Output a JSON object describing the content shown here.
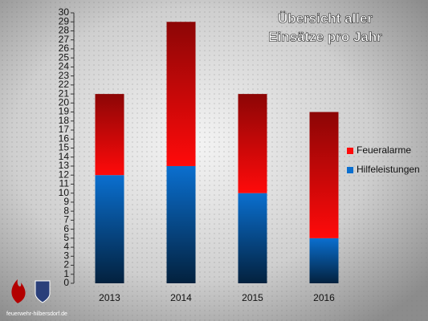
{
  "chart_data": {
    "type": "stacked_bar",
    "title": [
      "Übersicht aller",
      "Einsätze pro Jahr"
    ],
    "categories": [
      "2013",
      "2014",
      "2015",
      "2016"
    ],
    "series": [
      {
        "name": "Hilfeleistungen",
        "color": "#0a6fcf",
        "values": [
          12,
          13,
          10,
          5
        ]
      },
      {
        "name": "Feueralarme",
        "color": "#ff0a0a",
        "values": [
          9,
          16,
          11,
          14
        ]
      }
    ],
    "ylim": [
      0,
      30
    ],
    "yticks": [
      0,
      1,
      2,
      3,
      4,
      5,
      6,
      7,
      8,
      9,
      10,
      11,
      12,
      13,
      14,
      15,
      16,
      17,
      18,
      19,
      20,
      21,
      22,
      23,
      24,
      25,
      26,
      27,
      28,
      29,
      30
    ],
    "legend": "right",
    "footer": "feuerwehr-hilbersdorf.de"
  }
}
